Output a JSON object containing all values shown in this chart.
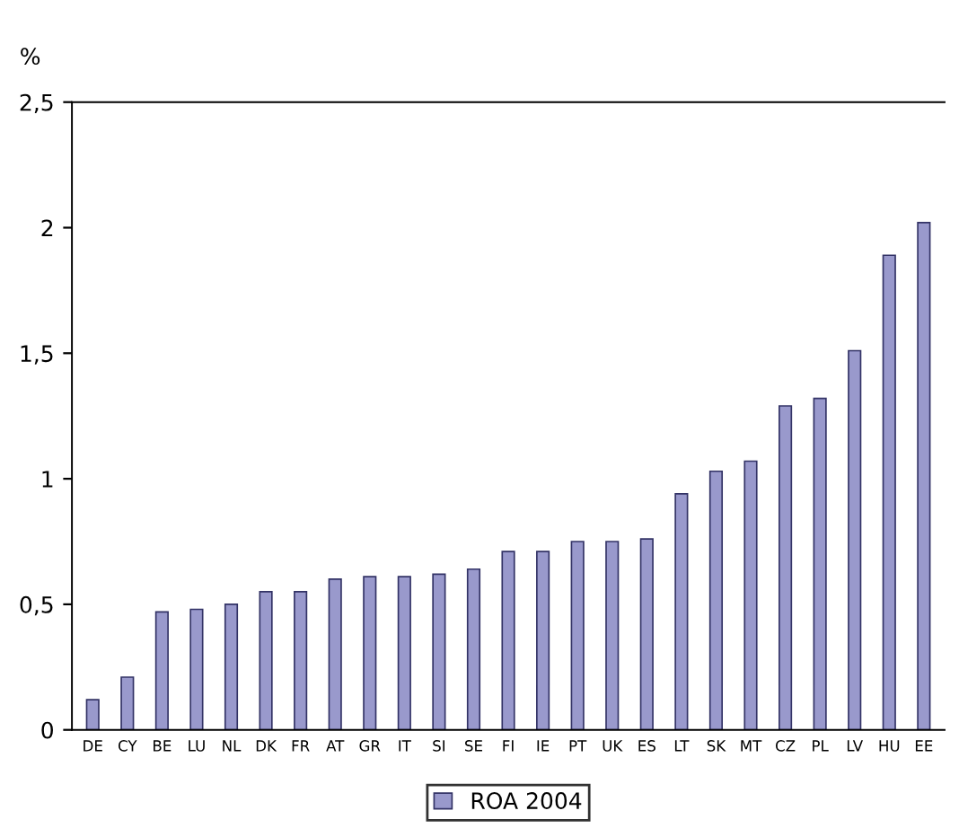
{
  "chart_data": {
    "type": "bar",
    "ylabel": "%",
    "categories": [
      "DE",
      "CY",
      "BE",
      "LU",
      "NL",
      "DK",
      "FR",
      "AT",
      "GR",
      "IT",
      "SI",
      "SE",
      "FI",
      "IE",
      "PT",
      "UK",
      "ES",
      "LT",
      "SK",
      "MT",
      "CZ",
      "PL",
      "LV",
      "HU",
      "EE"
    ],
    "series": [
      {
        "name": "ROA 2004",
        "color": "#9999cc",
        "values": [
          0.12,
          0.21,
          0.47,
          0.48,
          0.5,
          0.55,
          0.55,
          0.6,
          0.61,
          0.61,
          0.62,
          0.64,
          0.71,
          0.71,
          0.75,
          0.75,
          0.76,
          0.94,
          1.03,
          1.07,
          1.29,
          1.32,
          1.51,
          1.89,
          2.02
        ]
      }
    ],
    "ylim": [
      0,
      2.5
    ],
    "yticks": [
      0,
      {
        "value": 0.5,
        "label": "0,5"
      },
      1,
      {
        "value": 1.5,
        "label": "1,5"
      },
      2,
      {
        "value": 2.5,
        "label": "2,5"
      }
    ],
    "grid": false,
    "legend": "bottom"
  }
}
